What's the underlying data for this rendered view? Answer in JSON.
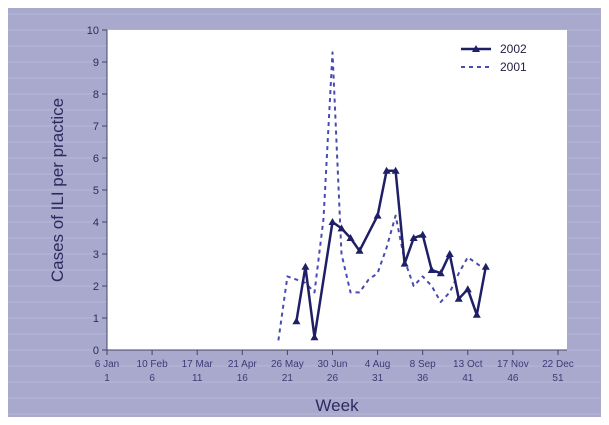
{
  "chart_data": {
    "type": "line",
    "title": "",
    "xlabel": "Week",
    "ylabel": "Cases of ILI per practice",
    "ylim": [
      0,
      10
    ],
    "yticks": [
      "0",
      "1",
      "2",
      "3",
      "4",
      "5",
      "6",
      "7",
      "8",
      "9",
      "10"
    ],
    "xlim": [
      1,
      52
    ],
    "xticks": [
      {
        "week": 1,
        "date": "6 Jan",
        "num": "1"
      },
      {
        "week": 6,
        "date": "10 Feb",
        "num": "6"
      },
      {
        "week": 11,
        "date": "17 Mar",
        "num": "11"
      },
      {
        "week": 16,
        "date": "21 Apr",
        "num": "16"
      },
      {
        "week": 21,
        "date": "26 May",
        "num": "21"
      },
      {
        "week": 26,
        "date": "30 Jun",
        "num": "26"
      },
      {
        "week": 31,
        "date": "4 Aug",
        "num": "31"
      },
      {
        "week": 36,
        "date": "8 Sep",
        "num": "36"
      },
      {
        "week": 41,
        "date": "13 Oct",
        "num": "41"
      },
      {
        "week": 46,
        "date": "17 Nov",
        "num": "46"
      },
      {
        "week": 51,
        "date": "22 Dec",
        "num": "51"
      }
    ],
    "legend_position": "top-right",
    "series": [
      {
        "name": "2002",
        "color": "#1f1f66",
        "style": "solid",
        "markers": true,
        "points": [
          [
            22,
            0.9
          ],
          [
            23,
            2.6
          ],
          [
            24,
            0.4
          ],
          [
            26,
            4.0
          ],
          [
            27,
            3.8
          ],
          [
            28,
            3.5
          ],
          [
            29,
            3.1
          ],
          [
            31,
            4.2
          ],
          [
            32,
            5.6
          ],
          [
            33,
            5.6
          ],
          [
            34,
            2.7
          ],
          [
            35,
            3.5
          ],
          [
            36,
            3.6
          ],
          [
            37,
            2.5
          ],
          [
            38,
            2.4
          ],
          [
            39,
            3.0
          ],
          [
            40,
            1.6
          ],
          [
            41,
            1.9
          ],
          [
            42,
            1.1
          ],
          [
            43,
            2.6
          ]
        ]
      },
      {
        "name": "2001",
        "color": "#4a4ab0",
        "style": "dashed",
        "markers": false,
        "points": [
          [
            20,
            0.3
          ],
          [
            21,
            2.3
          ],
          [
            22,
            2.2
          ],
          [
            23,
            2.1
          ],
          [
            24,
            1.8
          ],
          [
            25,
            4.1
          ],
          [
            26,
            9.3
          ],
          [
            27,
            3.0
          ],
          [
            28,
            1.8
          ],
          [
            29,
            1.8
          ],
          [
            30,
            2.2
          ],
          [
            31,
            2.4
          ],
          [
            32,
            3.2
          ],
          [
            33,
            4.2
          ],
          [
            34,
            2.8
          ],
          [
            35,
            2.0
          ],
          [
            36,
            2.3
          ],
          [
            37,
            2.0
          ],
          [
            38,
            1.5
          ],
          [
            39,
            1.8
          ],
          [
            40,
            2.4
          ],
          [
            41,
            2.9
          ],
          [
            42,
            2.7
          ],
          [
            43,
            2.5
          ]
        ]
      }
    ]
  }
}
